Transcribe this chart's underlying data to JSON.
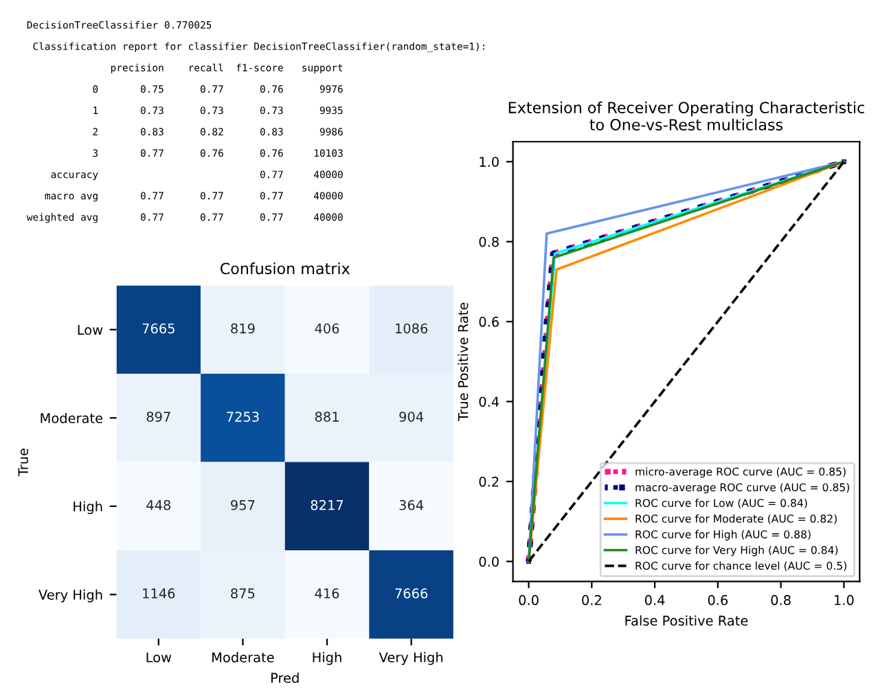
{
  "chart_data": [
    {
      "type": "other",
      "annotations": [
        "DecisionTreeClassifier 0.770025",
        " Classification report for classifier DecisionTreeClassifier(random_state=1):",
        "              precision    recall  f1-score   support",
        "           0       0.75      0.77      0.76      9976",
        "           1       0.73      0.73      0.73      9935",
        "           2       0.83      0.82      0.83      9986",
        "           3       0.77      0.76      0.76     10103",
        "    accuracy                           0.77     40000",
        "   macro avg       0.77      0.77      0.77     40000",
        "weighted avg       0.77      0.77      0.77     40000"
      ]
    },
    {
      "type": "heatmap",
      "title": "Confusion matrix",
      "xlabel": "Pred",
      "ylabel": "True",
      "categories": [
        "Low",
        "Moderate",
        "High",
        "Very High"
      ],
      "y_categories": [
        "Low",
        "Moderate",
        "High",
        "Very High"
      ],
      "cells": [
        [
          7665,
          819,
          406,
          1086
        ],
        [
          897,
          7253,
          881,
          904
        ],
        [
          448,
          957,
          8217,
          364
        ],
        [
          1146,
          875,
          416,
          7666
        ]
      ],
      "data_labels": true
    },
    {
      "type": "line",
      "title": "Extension of Receiver Operating Characteristic\nto One-vs-Rest multiclass",
      "xlabel": "False Positive Rate",
      "ylabel": "True Positive Rate",
      "xlim": [
        -0.05,
        1.05
      ],
      "ylim": [
        -0.05,
        1.05
      ],
      "xticks": [
        {
          "value": 0,
          "label": "0.0"
        },
        {
          "value": 0.2,
          "label": "0.2"
        },
        {
          "value": 0.4,
          "label": "0.4"
        },
        {
          "value": 0.6,
          "label": "0.6"
        },
        {
          "value": 0.8,
          "label": "0.8"
        },
        {
          "value": 1,
          "label": "1.0"
        }
      ],
      "yticks": [
        {
          "value": 0,
          "label": "0.0"
        },
        {
          "value": 0.2,
          "label": "0.2"
        },
        {
          "value": 0.4,
          "label": "0.4"
        },
        {
          "value": 0.6,
          "label": "0.6"
        },
        {
          "value": 0.8,
          "label": "0.8"
        },
        {
          "value": 1,
          "label": "1.0"
        }
      ],
      "grid": false,
      "legend": "bottom right",
      "series": [
        {
          "name": "micro-average ROC curve (AUC = 0.85)",
          "color": "#ff1493",
          "line_style": "dotted",
          "x": [
            0,
            0.077,
            1
          ],
          "values": [
            0,
            0.77,
            1
          ]
        },
        {
          "name": "macro-average ROC curve (AUC = 0.85)",
          "color": "#000080",
          "line_style": "dotted",
          "x": [
            0,
            0.057,
            0.077,
            1
          ],
          "values": [
            0,
            0.6,
            0.77,
            1
          ]
        },
        {
          "name": "ROC curve for Low (AUC = 0.84)",
          "color": "#00ffff",
          "line_style": "solid",
          "x": [
            0,
            0.083,
            1
          ],
          "values": [
            0,
            0.77,
            1
          ]
        },
        {
          "name": "ROC curve for Moderate (AUC = 0.82)",
          "color": "#ff8c00",
          "line_style": "solid",
          "x": [
            0,
            0.088,
            1
          ],
          "values": [
            0,
            0.73,
            1
          ]
        },
        {
          "name": "ROC curve for High (AUC = 0.88)",
          "color": "#6495ed",
          "line_style": "solid",
          "x": [
            0,
            0.057,
            1
          ],
          "values": [
            0,
            0.82,
            1
          ]
        },
        {
          "name": "ROC curve for Very High (AUC = 0.84)",
          "color": "#228b22",
          "line_style": "solid",
          "x": [
            0,
            0.079,
            1
          ],
          "values": [
            0,
            0.76,
            1
          ]
        },
        {
          "name": "ROC curve for chance level (AUC = 0.5)",
          "color": "#000000",
          "line_style": "dashed",
          "x": [
            0,
            1
          ],
          "values": [
            0,
            1
          ]
        }
      ]
    }
  ]
}
